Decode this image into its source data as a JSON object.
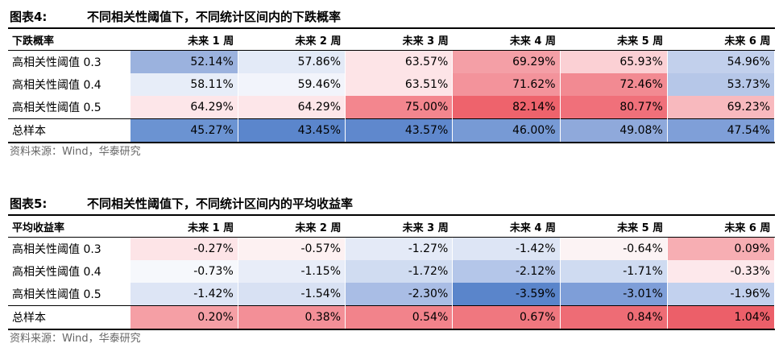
{
  "figure4": {
    "label": "图表4:",
    "title": "不同相关性阈值下，不同统计区间内的下跌概率",
    "header": [
      "下跌概率",
      "未来 1 周",
      "未来 2 周",
      "未来 3 周",
      "未来 4 周",
      "未来 5 周",
      "未来 6 周"
    ],
    "rows": [
      {
        "label": "高相关性阈值 0.3",
        "cells": [
          {
            "text": "52.14%",
            "color": "#9bb2de"
          },
          {
            "text": "57.86%",
            "color": "#e3eaf7"
          },
          {
            "text": "63.57%",
            "color": "#fde4e7"
          },
          {
            "text": "69.29%",
            "color": "#f49fa6"
          },
          {
            "text": "65.93%",
            "color": "#fbd0d4"
          },
          {
            "text": "54.96%",
            "color": "#c2d0ec"
          }
        ]
      },
      {
        "label": "高相关性阈值 0.4",
        "cells": [
          {
            "text": "58.11%",
            "color": "#e7edf8"
          },
          {
            "text": "59.46%",
            "color": "#f2f4fb"
          },
          {
            "text": "63.51%",
            "color": "#fde4e7"
          },
          {
            "text": "71.62%",
            "color": "#f3939b"
          },
          {
            "text": "72.46%",
            "color": "#f28a92"
          },
          {
            "text": "53.73%",
            "color": "#b6c7e8"
          }
        ]
      },
      {
        "label": "高相关性阈值 0.5",
        "cells": [
          {
            "text": "64.29%",
            "color": "#fde6e9"
          },
          {
            "text": "64.29%",
            "color": "#fde6e9"
          },
          {
            "text": "75.00%",
            "color": "#f3868e"
          },
          {
            "text": "82.14%",
            "color": "#ee636c"
          },
          {
            "text": "80.77%",
            "color": "#f0707a"
          },
          {
            "text": "69.23%",
            "color": "#f8b9be"
          }
        ]
      },
      {
        "label": "总样本",
        "total": true,
        "cells": [
          {
            "text": "45.27%",
            "color": "#6b93d2"
          },
          {
            "text": "43.45%",
            "color": "#5b86cc"
          },
          {
            "text": "43.57%",
            "color": "#5f88cd"
          },
          {
            "text": "46.00%",
            "color": "#779ad5"
          },
          {
            "text": "49.08%",
            "color": "#8fa9db"
          },
          {
            "text": "47.54%",
            "color": "#7f9fd8"
          }
        ]
      }
    ],
    "source": "资料来源：Wind，华泰研究"
  },
  "figure5": {
    "label": "图表5:",
    "title": "不同相关性阈值下，不同统计区间内的平均收益率",
    "header": [
      "平均收益率",
      "未来 1 周",
      "未来 2 周",
      "未来 3 周",
      "未来 4 周",
      "未来 5 周",
      "未来 6 周"
    ],
    "rows": [
      {
        "label": "高相关性阈值 0.3",
        "cells": [
          {
            "text": "-0.27%",
            "color": "#fde4e7"
          },
          {
            "text": "-0.57%",
            "color": "#fdf1f2"
          },
          {
            "text": "-1.27%",
            "color": "#e4eaf7"
          },
          {
            "text": "-1.42%",
            "color": "#dde5f5"
          },
          {
            "text": "-0.64%",
            "color": "#fcf3f4"
          },
          {
            "text": "0.09%",
            "color": "#f7aeb3"
          }
        ]
      },
      {
        "label": "高相关性阈值 0.4",
        "cells": [
          {
            "text": "-0.73%",
            "color": "#f6f8fc"
          },
          {
            "text": "-1.15%",
            "color": "#e8edf8"
          },
          {
            "text": "-1.72%",
            "color": "#d0dcf1"
          },
          {
            "text": "-2.12%",
            "color": "#b4c6e9"
          },
          {
            "text": "-1.71%",
            "color": "#cfdbf1"
          },
          {
            "text": "-0.33%",
            "color": "#fde8eb"
          }
        ]
      },
      {
        "label": "高相关性阈值 0.5",
        "cells": [
          {
            "text": "-1.42%",
            "color": "#dde5f5"
          },
          {
            "text": "-1.54%",
            "color": "#d8e1f3"
          },
          {
            "text": "-2.30%",
            "color": "#a9bde5"
          },
          {
            "text": "-3.59%",
            "color": "#5a85cb"
          },
          {
            "text": "-3.01%",
            "color": "#7e9ed8"
          },
          {
            "text": "-1.96%",
            "color": "#c2d1ee"
          }
        ]
      },
      {
        "label": "总样本",
        "total": true,
        "cells": [
          {
            "text": "0.20%",
            "color": "#f59fa5"
          },
          {
            "text": "0.38%",
            "color": "#f38f97"
          },
          {
            "text": "0.54%",
            "color": "#f2838b"
          },
          {
            "text": "0.67%",
            "color": "#f0777f"
          },
          {
            "text": "0.84%",
            "color": "#ee6c75"
          },
          {
            "text": "1.04%",
            "color": "#ec5f69"
          }
        ]
      }
    ],
    "source": "资料来源：Wind，华泰研究"
  }
}
